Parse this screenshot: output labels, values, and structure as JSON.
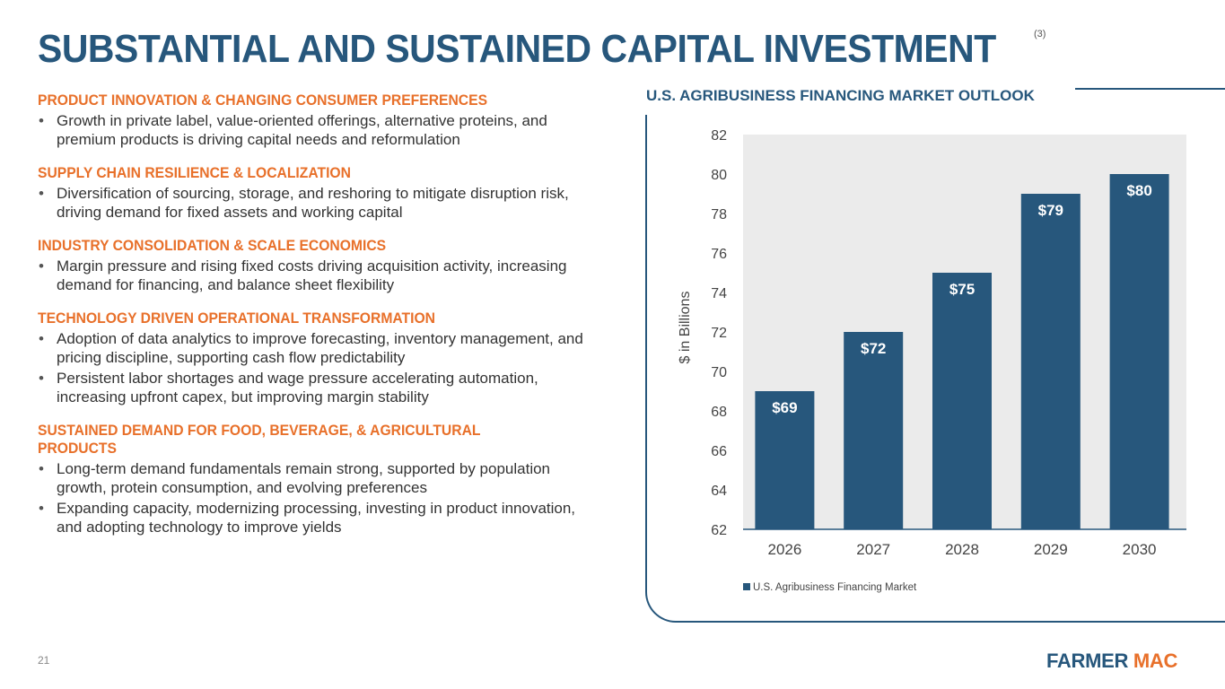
{
  "slide": {
    "title": "SUBSTANTIAL AND SUSTAINED CAPITAL INVESTMENT",
    "footnote_ref": "(3)",
    "page_number": "21",
    "logo": {
      "part1": "FARMER",
      "part2": "MAC"
    }
  },
  "colors": {
    "title": "#27577c",
    "section_heading": "#e8702a",
    "bar": "#27577c",
    "plot_background": "#ebebeb",
    "body_text": "#333333"
  },
  "sections": [
    {
      "heading": "PRODUCT INNOVATION & CHANGING CONSUMER PREFERENCES",
      "bullets": [
        "Growth in private label, value-oriented offerings, alternative proteins, and premium products is driving capital needs and reformulation"
      ]
    },
    {
      "heading": "SUPPLY CHAIN RESILIENCE & LOCALIZATION",
      "bullets": [
        "Diversification of sourcing, storage, and reshoring to mitigate disruption risk, driving demand for fixed assets and working capital"
      ]
    },
    {
      "heading": "INDUSTRY CONSOLIDATION & SCALE ECONOMICS",
      "bullets": [
        "Margin pressure and rising fixed costs driving acquisition activity, increasing demand for financing, and balance sheet flexibility"
      ]
    },
    {
      "heading": "TECHNOLOGY DRIVEN OPERATIONAL TRANSFORMATION",
      "bullets": [
        "Adoption of data analytics to improve forecasting, inventory management, and pricing discipline, supporting cash flow predictability",
        "Persistent labor shortages and wage pressure accelerating automation, increasing upfront capex, but improving margin stability"
      ]
    },
    {
      "heading": "SUSTAINED DEMAND FOR FOOD, BEVERAGE, & AGRICULTURAL PRODUCTS",
      "bullets": [
        "Long-term demand fundamentals remain strong, supported by population growth, protein consumption, and evolving preferences",
        "Expanding capacity, modernizing processing, investing in product innovation, and adopting technology to improve yields"
      ]
    }
  ],
  "chart_data": {
    "type": "bar",
    "title": "U.S. AGRIBUSINESS FINANCING MARKET OUTLOOK",
    "categories": [
      "2026",
      "2027",
      "2028",
      "2029",
      "2030"
    ],
    "series": [
      {
        "name": "U.S. Agribusiness Financing Market",
        "values": [
          69,
          72,
          75,
          79,
          80
        ]
      }
    ],
    "data_labels": [
      "$69",
      "$72",
      "$75",
      "$79",
      "$80"
    ],
    "xlabel": "",
    "ylabel": "$ in Billions",
    "ylim": [
      62,
      82
    ],
    "yticks": [
      62,
      64,
      66,
      68,
      70,
      72,
      74,
      76,
      78,
      80,
      82
    ],
    "grid": false,
    "legend_position": "bottom-left"
  }
}
